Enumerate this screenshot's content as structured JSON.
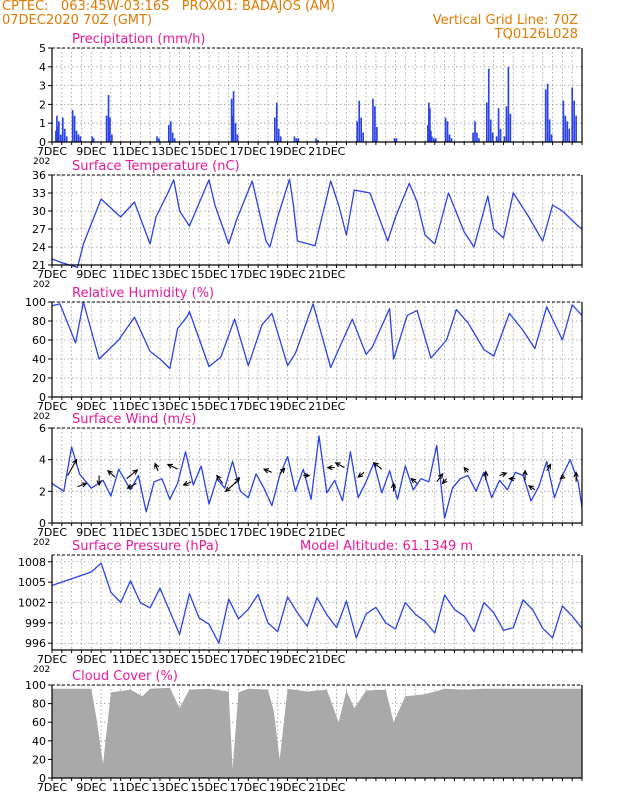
{
  "header": {
    "station_line": "CPTEC:   063:45W-03:16S   PROX01: BADAJOS (AM)",
    "date_line": "07DEC2020 70Z (GMT)",
    "vertical_grid": "Vertical Grid Line: 70Z",
    "code": "TQ0126L028"
  },
  "x_tick_labels": [
    "7DEC",
    "9DEC",
    "11DEC",
    "13DEC",
    "15DEC",
    "17DEC",
    "19DEC",
    "21DEC"
  ],
  "year_stub": "202",
  "model_altitude": "Model Altitude: 61.1349 m",
  "colors": {
    "header": "#e07a00",
    "title": "#e8199a",
    "line": "#2b43e6",
    "cloud": "#a9a9a9",
    "arrow": "#000000"
  },
  "chart_data": [
    {
      "type": "bar",
      "title": "Precipitation (mm/h)",
      "y_ticks": [
        "0",
        "1",
        "2",
        "3",
        "4",
        "5"
      ],
      "ylim": [
        0,
        5
      ],
      "x": [
        0.2,
        0.25,
        0.3,
        0.35,
        0.45,
        0.55,
        0.65,
        0.75,
        1.05,
        1.15,
        1.25,
        1.35,
        1.45,
        2.05,
        2.12,
        2.78,
        2.88,
        2.95,
        3.05,
        5.35,
        5.45,
        5.95,
        6.05,
        6.15,
        6.25,
        9.15,
        9.2,
        9.25,
        9.35,
        9.45,
        11.35,
        11.45,
        11.55,
        11.65,
        12.35,
        12.45,
        12.55,
        13.45,
        13.55,
        15.55,
        15.65,
        15.75,
        15.85,
        16.35,
        16.45,
        16.55,
        17.45,
        17.55,
        19.15,
        19.2,
        19.25,
        19.3,
        19.35,
        19.45,
        19.55,
        20.05,
        20.15,
        20.25,
        20.35,
        21.45,
        21.55,
        21.65,
        21.75,
        22.15,
        22.25,
        22.35,
        22.45,
        22.65,
        22.75,
        22.85,
        23.05,
        23.15,
        23.25,
        23.35,
        25.15,
        25.25,
        25.35,
        25.45,
        26.05,
        26.15,
        26.25,
        26.35,
        26.5,
        26.6,
        26.7
      ],
      "values": [
        0.6,
        1.4,
        0.8,
        1.1,
        0.4,
        1.3,
        0.7,
        0.3,
        1.7,
        1.4,
        0.6,
        0.4,
        0.3,
        0.3,
        0.2,
        1.4,
        2.5,
        1.3,
        0.4,
        0.3,
        0.2,
        0.9,
        1.1,
        0.5,
        0.2,
        2.3,
        1.4,
        2.7,
        1.0,
        0.4,
        1.3,
        2.1,
        0.7,
        0.3,
        0.3,
        0.2,
        0.2,
        0.2,
        0.1,
        1.1,
        2.2,
        1.3,
        0.5,
        2.3,
        1.9,
        0.8,
        0.2,
        0.2,
        0.9,
        2.1,
        1.8,
        0.6,
        0.3,
        0.2,
        0.2,
        1.3,
        1.1,
        0.4,
        0.2,
        0.5,
        1.1,
        0.5,
        0.2,
        2.1,
        3.9,
        1.2,
        0.5,
        0.3,
        1.8,
        0.7,
        0.3,
        1.9,
        4.0,
        1.5,
        2.8,
        3.1,
        1.2,
        0.4,
        2.2,
        1.4,
        1.1,
        0.7,
        2.9,
        2.2,
        1.4
      ]
    },
    {
      "type": "line",
      "title": "Surface Temperature (nC)",
      "y_ticks": [
        "21",
        "24",
        "27",
        "30",
        "33",
        "36"
      ],
      "ylim": [
        21,
        36
      ],
      "x": [
        0,
        0.5,
        1.3,
        1.6,
        2.5,
        3.5,
        4.2,
        5.0,
        5.3,
        5.9,
        6.2,
        6.5,
        7.0,
        8.0,
        8.3,
        9.0,
        9.2,
        9.4,
        10.2,
        10.9,
        11.1,
        11.5,
        12.1,
        12.3,
        12.5,
        13.4,
        14.2,
        14.6,
        15.0,
        15.4,
        16.2,
        17.1,
        17.5,
        18.2,
        18.6,
        19.0,
        19.5,
        20.2,
        21.0,
        21.5,
        22.2,
        22.5,
        23.0,
        23.5,
        24.2,
        25.0,
        25.5,
        26.0,
        26.8,
        27.0
      ],
      "values": [
        22.0,
        21.4,
        20.6,
        24.5,
        32.0,
        29.0,
        31.5,
        24.5,
        29.0,
        33.0,
        35.2,
        30.0,
        27.5,
        35.2,
        31.0,
        24.5,
        26.5,
        28.5,
        35.0,
        25.0,
        24.0,
        29.0,
        35.3,
        31.0,
        25.0,
        24.2,
        35.0,
        31.0,
        26.0,
        33.5,
        33.0,
        25.0,
        29.0,
        34.6,
        31.5,
        26.0,
        24.5,
        33.0,
        26.5,
        24.0,
        32.5,
        27.0,
        25.5,
        33.0,
        29.5,
        25.0,
        31.0,
        30.0,
        27.5,
        27.0
      ]
    },
    {
      "type": "line",
      "title": "Relative Humidity (%)",
      "y_ticks": [
        "0",
        "20",
        "40",
        "60",
        "80",
        "100"
      ],
      "ylim": [
        0,
        100
      ],
      "x": [
        0,
        0.4,
        1.2,
        1.6,
        2.4,
        3.4,
        4.2,
        5.0,
        5.5,
        6.0,
        6.4,
        6.9,
        7.0,
        8.0,
        8.6,
        9.3,
        10.0,
        10.7,
        11.2,
        12.0,
        12.4,
        13.3,
        14.2,
        14.6,
        15.3,
        16.0,
        16.3,
        17.2,
        17.4,
        18.1,
        18.6,
        19.3,
        20.1,
        20.6,
        21.2,
        22.0,
        22.5,
        23.3,
        24.0,
        24.6,
        25.2,
        26.0,
        26.5,
        27.0
      ],
      "values": [
        96,
        98,
        57,
        100,
        40,
        60,
        84,
        48,
        40,
        30,
        72,
        85,
        90,
        32,
        42,
        82,
        33,
        76,
        88,
        33,
        46,
        98,
        31,
        50,
        82,
        45,
        52,
        93,
        40,
        86,
        91,
        41,
        60,
        92,
        78,
        50,
        43,
        88,
        70,
        51,
        95,
        60,
        97,
        86
      ]
    },
    {
      "type": "line",
      "title": "Surface Wind (m/s)",
      "y_ticks": [
        "0",
        "2",
        "4",
        "6"
      ],
      "ylim": [
        0,
        6
      ],
      "x": [
        0,
        0.6,
        1.0,
        1.4,
        2.0,
        2.6,
        3.0,
        3.4,
        4.0,
        4.4,
        4.8,
        5.2,
        5.6,
        6.0,
        6.4,
        6.8,
        7.2,
        7.6,
        8.0,
        8.4,
        8.8,
        9.2,
        9.6,
        10.0,
        10.4,
        10.8,
        11.2,
        11.6,
        12.0,
        12.4,
        12.8,
        13.2,
        13.6,
        14.0,
        14.4,
        14.8,
        15.2,
        15.6,
        16.0,
        16.4,
        16.8,
        17.2,
        17.6,
        18.0,
        18.4,
        18.8,
        19.2,
        19.6,
        20.0,
        20.4,
        20.8,
        21.2,
        21.6,
        22.0,
        22.4,
        22.8,
        23.2,
        23.6,
        24.0,
        24.4,
        24.8,
        25.2,
        25.6,
        26.0,
        26.4,
        26.8,
        27.0
      ],
      "values": [
        2.5,
        2.0,
        4.8,
        3.1,
        2.2,
        2.7,
        1.7,
        3.4,
        2.1,
        3.0,
        0.7,
        2.6,
        2.8,
        1.5,
        2.5,
        4.5,
        2.4,
        3.6,
        1.2,
        2.8,
        2.2,
        3.9,
        2.0,
        1.6,
        3.1,
        2.2,
        1.1,
        3.0,
        4.2,
        2.0,
        3.4,
        1.5,
        5.5,
        1.9,
        2.7,
        1.4,
        4.5,
        1.6,
        2.6,
        3.8,
        1.9,
        3.3,
        1.5,
        3.6,
        2.1,
        2.8,
        2.6,
        4.9,
        0.3,
        2.2,
        2.8,
        3.0,
        2.0,
        3.2,
        1.6,
        2.7,
        2.1,
        3.2,
        3.0,
        1.4,
        2.3,
        3.9,
        1.6,
        3.0,
        4.0,
        2.6,
        1.0
      ],
      "vectors": [
        {
          "x": 0.8,
          "y": 3.0,
          "dx": 0.45,
          "dy": 1.0
        },
        {
          "x": 1.3,
          "y": 2.3,
          "dx": 0.45,
          "dy": 0.2
        },
        {
          "x": 2.4,
          "y": 3.0,
          "dx": 0.0,
          "dy": -0.6
        },
        {
          "x": 3.8,
          "y": 2.8,
          "dx": 0.55,
          "dy": 0.55
        },
        {
          "x": 3.2,
          "y": 2.9,
          "dx": -0.35,
          "dy": 0.4
        },
        {
          "x": 4.3,
          "y": 2.5,
          "dx": -0.45,
          "dy": -0.3
        },
        {
          "x": 5.4,
          "y": 3.3,
          "dx": -0.15,
          "dy": 0.45
        },
        {
          "x": 6.4,
          "y": 3.4,
          "dx": -0.5,
          "dy": 0.3
        },
        {
          "x": 7.1,
          "y": 2.6,
          "dx": -0.4,
          "dy": -0.2
        },
        {
          "x": 8.7,
          "y": 2.5,
          "dx": -0.3,
          "dy": 0.5
        },
        {
          "x": 9.3,
          "y": 2.5,
          "dx": 0.25,
          "dy": 0.35
        },
        {
          "x": 9.4,
          "y": 2.6,
          "dx": -0.55,
          "dy": -0.6
        },
        {
          "x": 11.2,
          "y": 3.2,
          "dx": -0.4,
          "dy": 0.2
        },
        {
          "x": 11.6,
          "y": 3.1,
          "dx": 0.25,
          "dy": 0.35
        },
        {
          "x": 12.8,
          "y": 3.0,
          "dx": 0.3,
          "dy": 0.0
        },
        {
          "x": 14.4,
          "y": 3.5,
          "dx": -0.35,
          "dy": 0.0
        },
        {
          "x": 14.9,
          "y": 3.5,
          "dx": -0.45,
          "dy": 0.3
        },
        {
          "x": 15.9,
          "y": 3.2,
          "dx": -0.3,
          "dy": -0.3
        },
        {
          "x": 16.8,
          "y": 3.4,
          "dx": -0.4,
          "dy": 0.4
        },
        {
          "x": 17.4,
          "y": 2.0,
          "dx": 0.0,
          "dy": 0.5
        },
        {
          "x": 18.6,
          "y": 2.5,
          "dx": -0.3,
          "dy": 0.3
        },
        {
          "x": 19.6,
          "y": 2.6,
          "dx": 0.3,
          "dy": 0.5
        },
        {
          "x": 20.1,
          "y": 2.8,
          "dx": -0.2,
          "dy": -0.3
        },
        {
          "x": 21.2,
          "y": 3.2,
          "dx": -0.2,
          "dy": 0.3
        },
        {
          "x": 22.1,
          "y": 2.7,
          "dx": 0.0,
          "dy": 0.55
        },
        {
          "x": 22.8,
          "y": 3.0,
          "dx": 0.35,
          "dy": 0.15
        },
        {
          "x": 23.6,
          "y": 2.8,
          "dx": -0.3,
          "dy": 0.0
        },
        {
          "x": 24.1,
          "y": 2.7,
          "dx": 0.0,
          "dy": 0.6
        },
        {
          "x": 24.6,
          "y": 2.1,
          "dx": -0.3,
          "dy": 0.25
        },
        {
          "x": 25.2,
          "y": 3.3,
          "dx": 0.2,
          "dy": 0.4
        },
        {
          "x": 26.1,
          "y": 3.0,
          "dx": -0.2,
          "dy": -0.2
        },
        {
          "x": 26.7,
          "y": 2.6,
          "dx": 0.0,
          "dy": 0.6
        }
      ]
    },
    {
      "type": "line",
      "title": "Surface Pressure (hPa)",
      "y_ticks": [
        "996",
        "999",
        "1002",
        "1005",
        "1008"
      ],
      "ylim": [
        995,
        1009
      ],
      "x": [
        0,
        0.5,
        1.0,
        1.5,
        2.0,
        2.5,
        3.0,
        3.5,
        4.0,
        4.5,
        5.0,
        5.5,
        6.0,
        6.5,
        7.0,
        7.5,
        8.0,
        8.5,
        9.0,
        9.5,
        10.0,
        10.5,
        11.0,
        11.5,
        12.0,
        12.5,
        13.0,
        13.5,
        14.0,
        14.5,
        15.0,
        15.5,
        16.0,
        16.5,
        17.0,
        17.5,
        18.0,
        18.5,
        19.0,
        19.5,
        20.0,
        20.5,
        21.0,
        21.5,
        22.0,
        22.5,
        23.0,
        23.5,
        24.0,
        24.5,
        25.0,
        25.5,
        26.0,
        26.5,
        27.0
      ],
      "values": [
        1004.5,
        1005.0,
        1005.5,
        1006.0,
        1006.5,
        1007.8,
        1003.5,
        1002.0,
        1005.2,
        1002.0,
        1001.2,
        1004.1,
        1000.7,
        997.3,
        1003.3,
        999.7,
        998.8,
        996.0,
        1002.5,
        999.6,
        1001.0,
        1003.2,
        999.0,
        997.7,
        1002.8,
        1000.5,
        998.5,
        1002.7,
        1000.2,
        998.3,
        1002.2,
        996.8,
        1000.3,
        1001.3,
        999.0,
        998.1,
        1002.0,
        1000.3,
        999.2,
        997.5,
        1003.1,
        1001.0,
        1000.0,
        997.7,
        1002.0,
        1000.5,
        997.9,
        998.3,
        1002.4,
        1000.9,
        998.2,
        996.8,
        1001.5,
        1000.0,
        998.2
      ]
    },
    {
      "type": "area",
      "title": "Cloud Cover (%)",
      "y_ticks": [
        "0",
        "20",
        "40",
        "60",
        "80",
        "100"
      ],
      "ylim": [
        0,
        100
      ],
      "x": [
        0,
        2.0,
        2.3,
        2.6,
        3.0,
        4.0,
        4.6,
        5.0,
        6.0,
        6.5,
        7.0,
        8.0,
        9.0,
        9.2,
        9.5,
        10.0,
        11.0,
        11.3,
        11.6,
        12.0,
        13.0,
        14.0,
        14.6,
        15.0,
        15.4,
        16.0,
        17.0,
        17.4,
        18.0,
        19.0,
        20.0,
        21.0,
        22.0,
        23.0,
        24.0,
        25.0,
        26.0,
        27.0
      ],
      "values": [
        96,
        96,
        60,
        15,
        92,
        95,
        88,
        96,
        97,
        75,
        95,
        96,
        93,
        10,
        92,
        96,
        95,
        72,
        20,
        96,
        93,
        95,
        60,
        94,
        75,
        94,
        95,
        60,
        88,
        90,
        96,
        95,
        96,
        96,
        96,
        96,
        96,
        96
      ]
    }
  ]
}
